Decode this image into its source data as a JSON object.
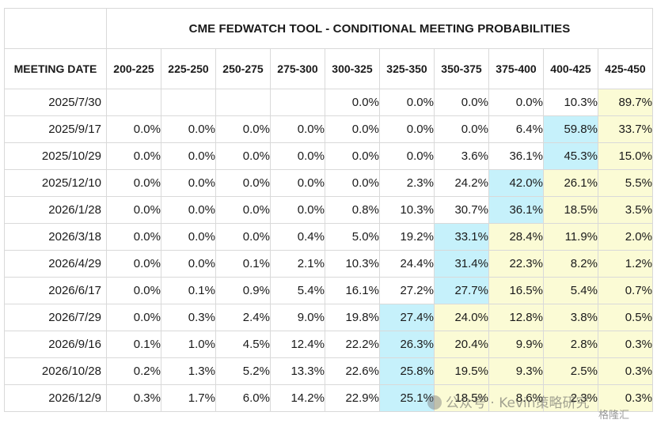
{
  "title": "CME FEDWATCH TOOL - CONDITIONAL MEETING PROBABILITIES",
  "header": {
    "date_label": "MEETING DATE",
    "ranges": [
      "200-225",
      "225-250",
      "250-275",
      "275-300",
      "300-325",
      "325-350",
      "350-375",
      "375-400",
      "400-425",
      "425-450"
    ]
  },
  "rows": [
    {
      "date": "2025/7/30",
      "values": [
        "",
        "",
        "",
        "",
        "0.0%",
        "0.0%",
        "0.0%",
        "0.0%",
        "10.3%",
        "89.7%"
      ],
      "shade": [
        "",
        "",
        "",
        "",
        "",
        "",
        "",
        "",
        "",
        "yellow"
      ],
      "max": 9
    },
    {
      "date": "2025/9/17",
      "values": [
        "0.0%",
        "0.0%",
        "0.0%",
        "0.0%",
        "0.0%",
        "0.0%",
        "0.0%",
        "6.4%",
        "59.8%",
        "33.7%"
      ],
      "shade": [
        "",
        "",
        "",
        "",
        "",
        "",
        "",
        "",
        "blue",
        "yellow"
      ]
    },
    {
      "date": "2025/10/29",
      "values": [
        "0.0%",
        "0.0%",
        "0.0%",
        "0.0%",
        "0.0%",
        "0.0%",
        "3.6%",
        "36.1%",
        "45.3%",
        "15.0%"
      ],
      "shade": [
        "",
        "",
        "",
        "",
        "",
        "",
        "",
        "",
        "blue",
        "yellow"
      ]
    },
    {
      "date": "2025/12/10",
      "values": [
        "0.0%",
        "0.0%",
        "0.0%",
        "0.0%",
        "0.0%",
        "2.3%",
        "24.2%",
        "42.0%",
        "26.1%",
        "5.5%"
      ],
      "shade": [
        "",
        "",
        "",
        "",
        "",
        "",
        "",
        "blue",
        "yellow",
        "yellow"
      ]
    },
    {
      "date": "2026/1/28",
      "values": [
        "0.0%",
        "0.0%",
        "0.0%",
        "0.0%",
        "0.8%",
        "10.3%",
        "30.7%",
        "36.1%",
        "18.5%",
        "3.5%"
      ],
      "shade": [
        "",
        "",
        "",
        "",
        "",
        "",
        "",
        "blue",
        "yellow",
        "yellow"
      ]
    },
    {
      "date": "2026/3/18",
      "values": [
        "0.0%",
        "0.0%",
        "0.0%",
        "0.4%",
        "5.0%",
        "19.2%",
        "33.1%",
        "28.4%",
        "11.9%",
        "2.0%"
      ],
      "shade": [
        "",
        "",
        "",
        "",
        "",
        "",
        "blue",
        "yellow",
        "yellow",
        "yellow"
      ]
    },
    {
      "date": "2026/4/29",
      "values": [
        "0.0%",
        "0.0%",
        "0.1%",
        "2.1%",
        "10.3%",
        "24.4%",
        "31.4%",
        "22.3%",
        "8.2%",
        "1.2%"
      ],
      "shade": [
        "",
        "",
        "",
        "",
        "",
        "",
        "blue",
        "yellow",
        "yellow",
        "yellow"
      ]
    },
    {
      "date": "2026/6/17",
      "values": [
        "0.0%",
        "0.1%",
        "0.9%",
        "5.4%",
        "16.1%",
        "27.2%",
        "27.7%",
        "16.5%",
        "5.4%",
        "0.7%"
      ],
      "shade": [
        "",
        "",
        "",
        "",
        "",
        "",
        "blue",
        "yellow",
        "yellow",
        "yellow"
      ]
    },
    {
      "date": "2026/7/29",
      "values": [
        "0.0%",
        "0.3%",
        "2.4%",
        "9.0%",
        "19.8%",
        "27.4%",
        "24.0%",
        "12.8%",
        "3.8%",
        "0.5%"
      ],
      "shade": [
        "",
        "",
        "",
        "",
        "",
        "blue",
        "yellow",
        "yellow",
        "yellow",
        "yellow"
      ]
    },
    {
      "date": "2026/9/16",
      "values": [
        "0.1%",
        "1.0%",
        "4.5%",
        "12.4%",
        "22.2%",
        "26.3%",
        "20.4%",
        "9.9%",
        "2.8%",
        "0.3%"
      ],
      "shade": [
        "",
        "",
        "",
        "",
        "",
        "blue",
        "yellow",
        "yellow",
        "yellow",
        "yellow"
      ]
    },
    {
      "date": "2026/10/28",
      "values": [
        "0.2%",
        "1.3%",
        "5.2%",
        "13.3%",
        "22.6%",
        "25.8%",
        "19.5%",
        "9.3%",
        "2.5%",
        "0.3%"
      ],
      "shade": [
        "",
        "",
        "",
        "",
        "",
        "blue",
        "yellow",
        "yellow",
        "yellow",
        "yellow"
      ]
    },
    {
      "date": "2026/12/9",
      "values": [
        "0.3%",
        "1.7%",
        "6.0%",
        "14.2%",
        "22.9%",
        "25.1%",
        "18.5%",
        "8.6%",
        "2.3%",
        "0.3%"
      ],
      "shade": [
        "",
        "",
        "",
        "",
        "",
        "blue",
        "yellow",
        "yellow",
        "yellow",
        "yellow"
      ]
    }
  ],
  "colors": {
    "highlight_blue": "#c6f1fb",
    "highlight_yellow": "#fbfbd5",
    "border": "#d9d9d9"
  },
  "watermark": "公众号 · Kevin策略研究",
  "logo": "格隆汇"
}
